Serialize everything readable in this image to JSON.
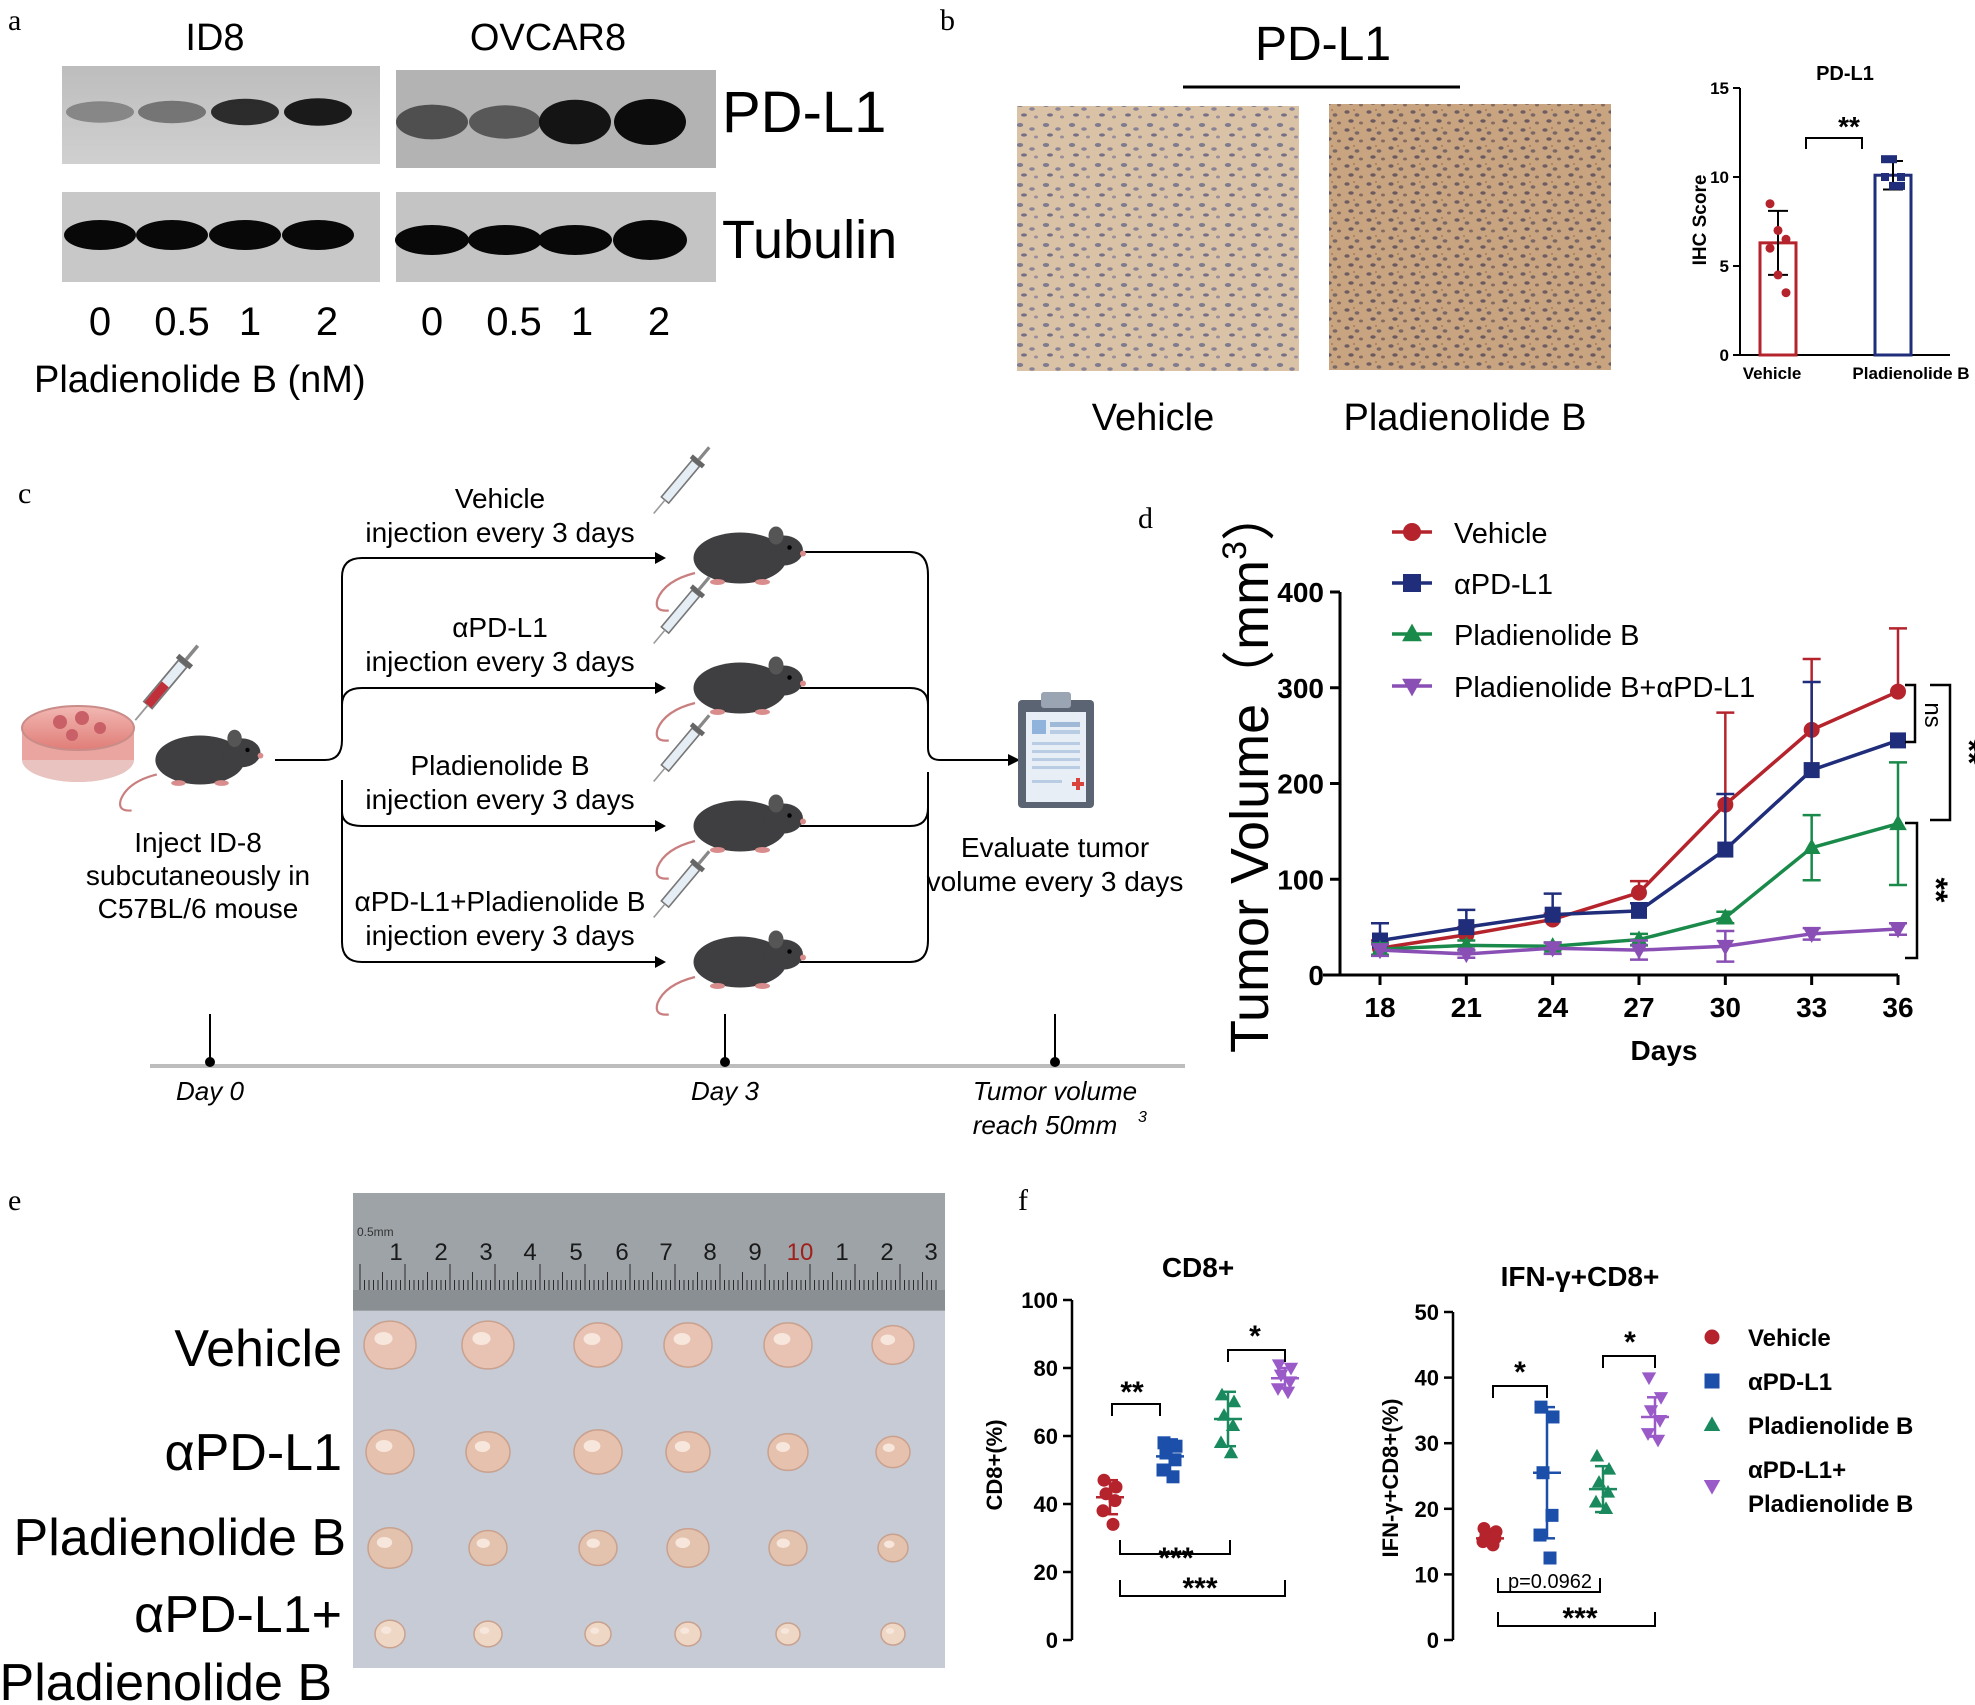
{
  "panel_letters": {
    "a": "a",
    "b": "b",
    "c": "c",
    "d": "d",
    "e": "e",
    "f": "f"
  },
  "panel_a": {
    "cell_lines": [
      "ID8",
      "OVCAR8"
    ],
    "proteins": [
      "PD-L1",
      "Tubulin"
    ],
    "doses": [
      "0",
      "0.5",
      "1",
      "2"
    ],
    "xlabel": "Pladienolide B (nM)"
  },
  "panel_b": {
    "header": "PD-L1",
    "image_labels": [
      "Vehicle",
      "Pladienolide B"
    ],
    "chart_title": "PD-L1",
    "ylabel": "IHC Score",
    "significance": "**"
  },
  "panel_c": {
    "inject_text": [
      "Inject ID-8",
      "subcutaneously in",
      "C57BL/6 mouse"
    ],
    "groups": [
      {
        "line1": "Vehicle",
        "line2": "injection every 3 days"
      },
      {
        "line1": "αPD-L1",
        "line2": "injection every 3 days"
      },
      {
        "line1": "Pladienolide B",
        "line2": "injection every 3 days"
      },
      {
        "line1": "αPD-L1+Pladienolide B",
        "line2": "injection every 3 days"
      }
    ],
    "evaluate_text": [
      "Evaluate tumor",
      "volume every 3 days"
    ],
    "timeline": {
      "day0": "Day 0",
      "day3": "Day 3",
      "end_line1": "Tumor volume",
      "end_line2": "reach 50mm",
      "end_sup": "3"
    }
  },
  "panel_d": {
    "sig_ns": "ns",
    "sig_1": "**",
    "sig_2": "**"
  },
  "panel_e": {
    "row_labels": [
      "Vehicle",
      "αPD-L1",
      "Pladienolide B",
      "αPD-L1+",
      "Pladienolide B"
    ],
    "ruler_numbers": [
      "1",
      "2",
      "3",
      "4",
      "5",
      "6",
      "7",
      "8",
      "9",
      "10",
      "1",
      "2",
      "3"
    ],
    "ruler_unit": "0.5mm"
  },
  "panel_f": {
    "legend": [
      "Vehicle",
      "αPD-L1",
      "Pladienolide B",
      "αPD-L1+",
      "Pladienolide B"
    ],
    "cd8_sig": {
      "a": "**",
      "b": "*",
      "c": "***",
      "d": "***"
    },
    "ifn_sig": {
      "a": "*",
      "b": "*",
      "c": "p=0.0962",
      "d": "***"
    }
  },
  "colors": {
    "vehicle": "#b5242c",
    "apdl1": "#1f2d7a",
    "plad": "#1a8a4a",
    "combo": "#8a4fb5",
    "f_apdl1": "#1c4faa",
    "f_plad": "#1a8a5e",
    "f_combo": "#9a5bc9"
  },
  "chart_data": [
    {
      "type": "bar",
      "title": "PD-L1",
      "ylabel": "IHC Score",
      "categories": [
        "Vehicle",
        "Pladienolide B"
      ],
      "values": [
        6.3,
        10.1
      ],
      "errors": [
        1.8,
        0.8
      ],
      "points": [
        [
          8.5,
          7,
          6.5,
          6,
          4.5,
          3.5
        ],
        [
          11,
          11,
          10,
          10,
          9.5,
          9.5
        ]
      ],
      "ylim": [
        0,
        15
      ],
      "yticks": [
        "0",
        "5",
        "10",
        "15"
      ]
    },
    {
      "type": "line",
      "ylabel": "Tumor Volume（mm",
      "ylabel_sup": "3",
      "ylabel_close": "）",
      "xlabel": "Days",
      "x": [
        18,
        21,
        24,
        27,
        30,
        33,
        36
      ],
      "xticks": [
        "18",
        "21",
        "24",
        "27",
        "30",
        "33",
        "36"
      ],
      "ylim": [
        0,
        400
      ],
      "yticks": [
        "0",
        "100",
        "200",
        "300",
        "400"
      ],
      "legend_position": "top-left",
      "series": [
        {
          "name": "Vehicle",
          "marker": "circle",
          "values": [
            28,
            42,
            58,
            86,
            178,
            256,
            296
          ],
          "errors": [
            8,
            8,
            6,
            12,
            96,
            74,
            66
          ]
        },
        {
          "name": "αPD-L1",
          "marker": "square",
          "values": [
            36,
            50,
            63,
            67,
            131,
            214,
            245
          ],
          "errors": [
            18,
            18,
            22,
            8,
            58,
            92,
            0
          ]
        },
        {
          "name": "Pladienolide B",
          "marker": "triangle-up",
          "values": [
            27,
            31,
            30,
            37,
            60,
            133,
            158
          ],
          "errors": [
            6,
            5,
            4,
            6,
            6,
            34,
            64
          ]
        },
        {
          "name": "Pladienolide B+αPD-L1",
          "marker": "triangle-down",
          "values": [
            26,
            22,
            28,
            26,
            30,
            43,
            48
          ],
          "errors": [
            6,
            4,
            6,
            10,
            16,
            6,
            6
          ]
        }
      ]
    },
    {
      "type": "scatter",
      "title": "CD8+",
      "ylabel": "CD8+(%)",
      "ylim": [
        0,
        100
      ],
      "yticks": [
        "0",
        "20",
        "40",
        "60",
        "80",
        "100"
      ],
      "series": [
        {
          "name": "Vehicle",
          "marker": "circle",
          "mean": 42,
          "error": 5,
          "points": [
            47,
            45,
            43,
            41,
            38,
            34
          ]
        },
        {
          "name": "αPD-L1",
          "marker": "square",
          "mean": 54,
          "error": 5,
          "points": [
            58,
            57,
            55,
            53,
            50,
            48
          ]
        },
        {
          "name": "Pladienolide B",
          "marker": "triangle-up",
          "mean": 65,
          "error": 8,
          "points": [
            72,
            70,
            66,
            63,
            58,
            55
          ]
        },
        {
          "name": "αPD-L1+Pladienolide B",
          "marker": "triangle-down",
          "mean": 77,
          "error": 3,
          "points": [
            81,
            80,
            78,
            76,
            74,
            73
          ]
        }
      ]
    },
    {
      "type": "scatter",
      "title": "IFN-γ+CD8+",
      "ylabel": "IFN-γ+CD8+(%)",
      "ylim": [
        0,
        50
      ],
      "yticks": [
        "0",
        "10",
        "20",
        "30",
        "40",
        "50"
      ],
      "series": [
        {
          "name": "Vehicle",
          "marker": "circle",
          "mean": 15.5,
          "error": 1,
          "points": [
            17,
            16.5,
            16,
            15.5,
            15,
            14.5
          ]
        },
        {
          "name": "αPD-L1",
          "marker": "square",
          "mean": 25.5,
          "error": 10,
          "points": [
            35.5,
            34,
            25.5,
            19,
            16,
            12.5
          ]
        },
        {
          "name": "Pladienolide B",
          "marker": "triangle-up",
          "mean": 23,
          "error": 3.5,
          "points": [
            28,
            26,
            24,
            22.5,
            21,
            20
          ]
        },
        {
          "name": "αPD-L1+Pladienolide B",
          "marker": "triangle-down",
          "mean": 34,
          "error": 3,
          "points": [
            40,
            37,
            35,
            33.5,
            31.5,
            30.5
          ]
        }
      ]
    }
  ]
}
